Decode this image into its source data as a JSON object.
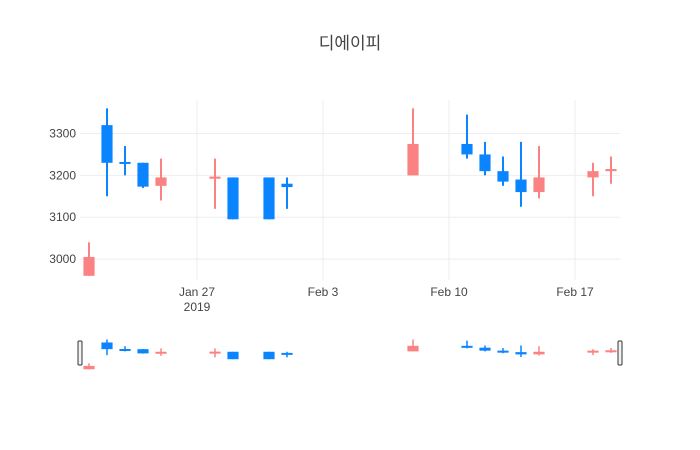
{
  "chart_data": {
    "type": "candlestick",
    "title": "디에이피",
    "colors": {
      "increasing": "#fa8282",
      "decreasing": "#0a84ff"
    },
    "x_range": [
      "2019-01-21",
      "2019-02-19"
    ],
    "ylim": [
      2950,
      3380
    ],
    "y_ticks": [
      3000,
      3100,
      3200,
      3300
    ],
    "x_ticks": [
      {
        "date": "2019-01-27",
        "label": "Jan 27",
        "sublabel": "2019"
      },
      {
        "date": "2019-02-03",
        "label": "Feb 3",
        "sublabel": ""
      },
      {
        "date": "2019-02-10",
        "label": "Feb 10",
        "sublabel": ""
      },
      {
        "date": "2019-02-17",
        "label": "Feb 17",
        "sublabel": ""
      }
    ],
    "candles": [
      {
        "date": "2019-01-21",
        "open": 2960,
        "high": 3040,
        "low": 2960,
        "close": 3005
      },
      {
        "date": "2019-01-22",
        "open": 3320,
        "high": 3360,
        "low": 3150,
        "close": 3230
      },
      {
        "date": "2019-01-23",
        "open": 3232,
        "high": 3270,
        "low": 3200,
        "close": 3228
      },
      {
        "date": "2019-01-24",
        "open": 3230,
        "high": 3230,
        "low": 3170,
        "close": 3173
      },
      {
        "date": "2019-01-25",
        "open": 3175,
        "high": 3240,
        "low": 3140,
        "close": 3195
      },
      {
        "date": "2019-01-28",
        "open": 3192,
        "high": 3240,
        "low": 3120,
        "close": 3197
      },
      {
        "date": "2019-01-29",
        "open": 3195,
        "high": 3195,
        "low": 3095,
        "close": 3095
      },
      {
        "date": "2019-01-31",
        "open": 3195,
        "high": 3195,
        "low": 3095,
        "close": 3095
      },
      {
        "date": "2019-02-01",
        "open": 3180,
        "high": 3195,
        "low": 3120,
        "close": 3172
      },
      {
        "date": "2019-02-08",
        "open": 3200,
        "high": 3360,
        "low": 3200,
        "close": 3275
      },
      {
        "date": "2019-02-11",
        "open": 3275,
        "high": 3345,
        "low": 3240,
        "close": 3250
      },
      {
        "date": "2019-02-12",
        "open": 3250,
        "high": 3280,
        "low": 3200,
        "close": 3210
      },
      {
        "date": "2019-02-13",
        "open": 3210,
        "high": 3245,
        "low": 3175,
        "close": 3185
      },
      {
        "date": "2019-02-14",
        "open": 3190,
        "high": 3280,
        "low": 3125,
        "close": 3160
      },
      {
        "date": "2019-02-15",
        "open": 3160,
        "high": 3270,
        "low": 3145,
        "close": 3195
      },
      {
        "date": "2019-02-18",
        "open": 3195,
        "high": 3230,
        "low": 3150,
        "close": 3210
      },
      {
        "date": "2019-02-19",
        "open": 3210,
        "high": 3245,
        "low": 3180,
        "close": 3215
      }
    ],
    "range_slider": true
  }
}
